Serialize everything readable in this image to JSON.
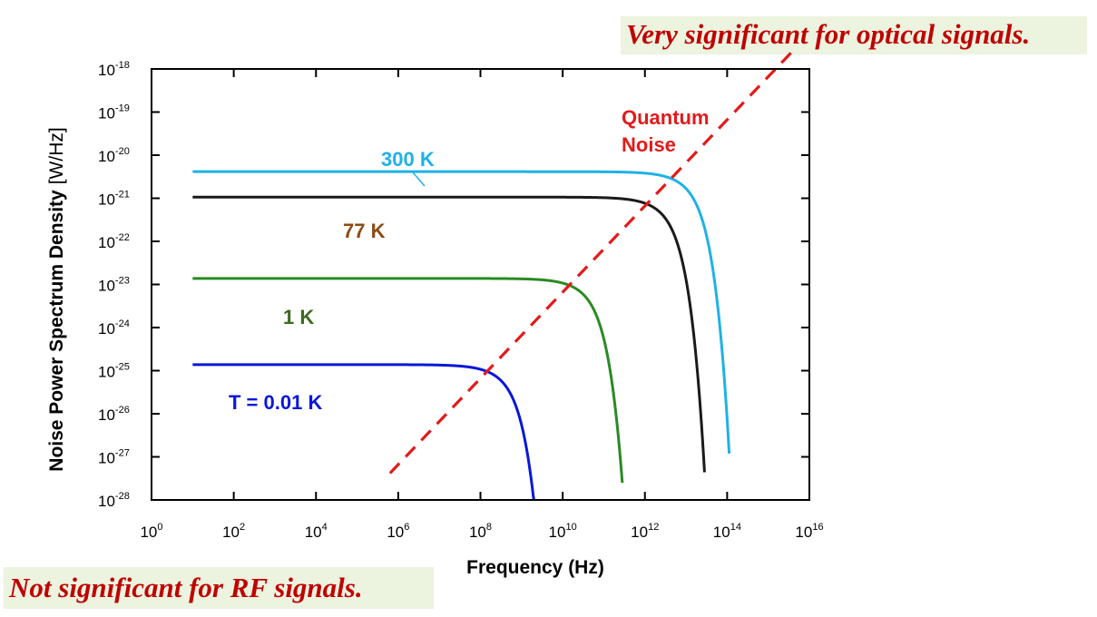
{
  "callouts": {
    "top": "Very significant for optical signals.",
    "bottom": "Not significant for RF signals."
  },
  "chart_data": {
    "type": "line",
    "x_scale": "log",
    "y_scale": "log",
    "xlabel": "Frequency (Hz)",
    "ylabel": "Noise Power Spectrum Density",
    "ylabel_unit": "[W/Hz]",
    "xlim_exponent": [
      0,
      16
    ],
    "ylim_exponent": [
      -28,
      -18
    ],
    "x_ticks": [
      {
        "base": "10",
        "exp": "0",
        "value": 0
      },
      {
        "base": "10",
        "exp": "2",
        "value": 2
      },
      {
        "base": "10",
        "exp": "4",
        "value": 4
      },
      {
        "base": "10",
        "exp": "6",
        "value": 6
      },
      {
        "base": "10",
        "exp": "8",
        "value": 8
      },
      {
        "base": "10",
        "exp": "10",
        "value": 10
      },
      {
        "base": "10",
        "exp": "12",
        "value": 12
      },
      {
        "base": "10",
        "exp": "14",
        "value": 14
      },
      {
        "base": "10",
        "exp": "16",
        "value": 16
      }
    ],
    "y_ticks": [
      {
        "base": "10",
        "exp": "-18",
        "value": -18
      },
      {
        "base": "10",
        "exp": "-19",
        "value": -19
      },
      {
        "base": "10",
        "exp": "-20",
        "value": -20
      },
      {
        "base": "10",
        "exp": "-21",
        "value": -21
      },
      {
        "base": "10",
        "exp": "-22",
        "value": -22
      },
      {
        "base": "10",
        "exp": "-23",
        "value": -23
      },
      {
        "base": "10",
        "exp": "-24",
        "value": -24
      },
      {
        "base": "10",
        "exp": "-25",
        "value": -25
      },
      {
        "base": "10",
        "exp": "-26",
        "value": -26
      },
      {
        "base": "10",
        "exp": "-27",
        "value": -27
      },
      {
        "base": "10",
        "exp": "-28",
        "value": -28
      }
    ],
    "series": [
      {
        "name": "300 K",
        "temperature_K": 300,
        "color": "#1fb1e6",
        "kind": "thermal",
        "x_log_start": 1,
        "x_log_end": 14.05
      },
      {
        "name": "77 K",
        "temperature_K": 77,
        "color": "#1a1a1a",
        "label_color": "#8b4a12",
        "kind": "thermal",
        "x_log_start": 1,
        "x_log_end": 13.45
      },
      {
        "name": "1 K",
        "temperature_K": 1,
        "color": "#2a8a22",
        "label_color": "#3b6a1e",
        "kind": "thermal",
        "x_log_start": 1,
        "x_log_end": 11.45
      },
      {
        "name": "T = 0.01 K",
        "temperature_K": 0.01,
        "color": "#0a17d8",
        "kind": "thermal",
        "x_log_start": 1,
        "x_log_end": 9.45
      },
      {
        "name": "Quantum Noise",
        "label_lines": [
          "Quantum",
          "Noise"
        ],
        "color": "#e21a1a",
        "kind": "quantum",
        "dash": true,
        "x_log_start": 5.8,
        "x_log_end": 15.6
      }
    ]
  }
}
